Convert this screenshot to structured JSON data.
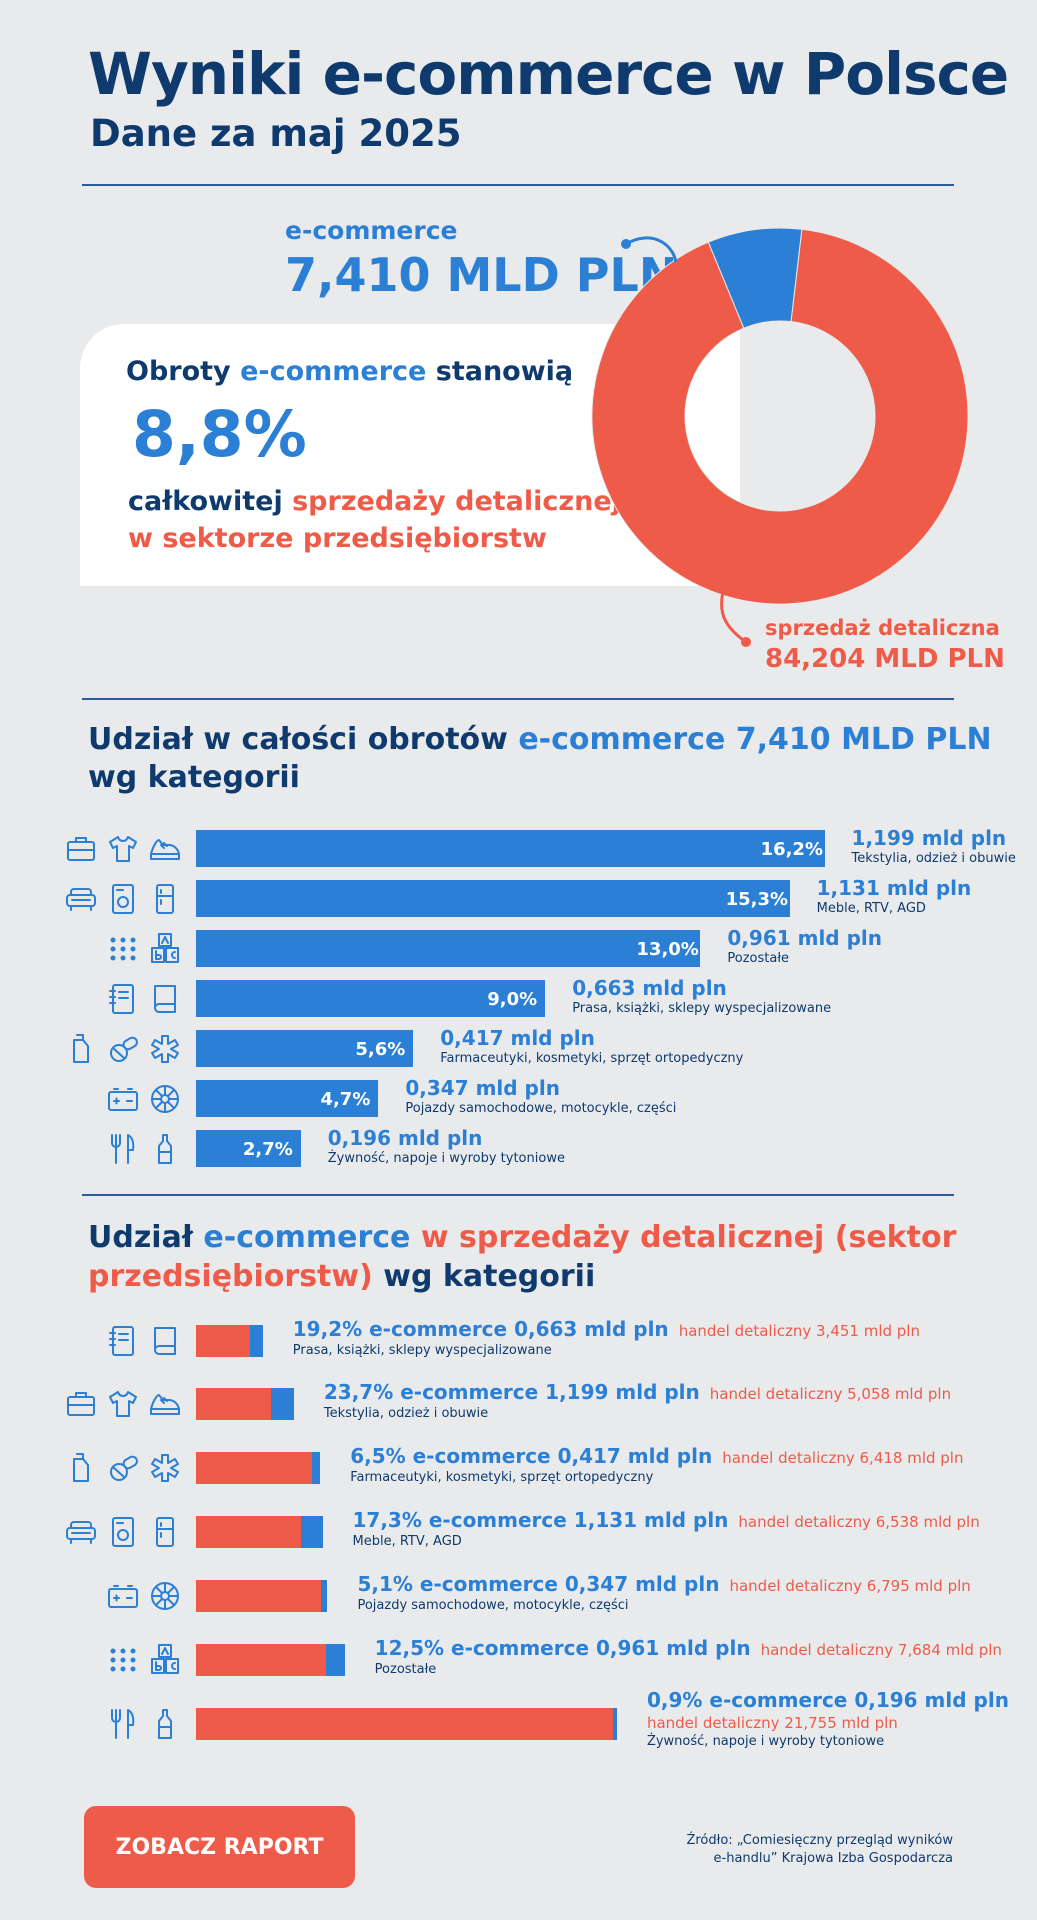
{
  "header": {
    "title": "Wyniki e-commerce w Polsce",
    "subtitle": "Dane za maj 2025"
  },
  "summary": {
    "ecommerce_label": "e-commerce",
    "ecommerce_value": "7,410 MLD PLN",
    "line1_a": "Obroty ",
    "line1_b": "e-commerce",
    "line1_c": " stanowią",
    "share": "8,8%",
    "line2_a": "całkowitej ",
    "line2_b": "sprzedaży detalicznej",
    "line3": "w sektorze przedsiębiorstw",
    "retail_label": "sprzedaż detaliczna",
    "retail_value": "84,204 MLD PLN"
  },
  "section1": {
    "t1": "Udział w całości obrotów ",
    "t2": "e-commerce 7,410 MLD PLN",
    "t3": "wg kategorii"
  },
  "section2": {
    "t1": "Udział ",
    "t2": "e-commerce",
    "t3": " w sprzedaży detalicznej (sektor",
    "t4": "przedsiębiorstw)",
    "t5": " wg kategorii"
  },
  "colors": {
    "blue": "#2b7fd4",
    "red": "#ef5b49",
    "navy": "#0e3a6e"
  },
  "chart_data": [
    {
      "type": "pie",
      "slices": [
        {
          "label": "e-commerce",
          "value": 7.41
        },
        {
          "label": "sprzedaż detaliczna",
          "value": 84.204
        }
      ]
    },
    {
      "type": "bar",
      "orientation": "horizontal",
      "items": [
        {
          "pct": 16.2,
          "pct_label": "16,2%",
          "value": "1,199 mld pln",
          "category": "Tekstylia, odzież i obuwie",
          "icons": [
            "briefcase-icon",
            "tshirt-icon",
            "sneaker-icon"
          ]
        },
        {
          "pct": 15.3,
          "pct_label": "15,3%",
          "value": "1,131 mld pln",
          "category": "Meble, RTV, AGD",
          "icons": [
            "sofa-icon",
            "washer-icon",
            "fridge-icon"
          ]
        },
        {
          "pct": 13.0,
          "pct_label": "13,0%",
          "value": "0,961 mld pln",
          "category": "Pozostałe",
          "icons": [
            "dots-grid-icon",
            "abc-blocks-icon"
          ]
        },
        {
          "pct": 9.0,
          "pct_label": "9,0%",
          "value": "0,663 mld pln",
          "category": "Prasa, książki, sklepy wyspecjalizowane",
          "icons": [
            "notebook-icon",
            "book-icon"
          ]
        },
        {
          "pct": 5.6,
          "pct_label": "5,6%",
          "value": "0,417 mld pln",
          "category": "Farmaceutyki, kosmetyki, sprzęt ortopedyczny",
          "icons": [
            "bottle-icon",
            "pills-icon",
            "medical-star-icon"
          ]
        },
        {
          "pct": 4.7,
          "pct_label": "4,7%",
          "value": "0,347 mld pln",
          "category": "Pojazdy samochodowe, motocykle, części",
          "icons": [
            "battery-icon",
            "wheel-icon"
          ]
        },
        {
          "pct": 2.7,
          "pct_label": "2,7%",
          "value": "0,196 mld pln",
          "category": "Żywność, napoje i wyroby tytoniowe",
          "icons": [
            "cutlery-icon",
            "drink-bottle-icon"
          ]
        }
      ]
    },
    {
      "type": "bar",
      "orientation": "horizontal",
      "stacked": true,
      "items": [
        {
          "pct": 19.2,
          "pct_label": "19,2%",
          "ecommerce": 0.663,
          "retail": 3.451,
          "ec_text": "e-commerce 0,663 mld pln",
          "retail_text": "handel detaliczny 3,451 mld pln",
          "category": "Prasa, książki, sklepy wyspecjalizowane",
          "icons": [
            "notebook-icon",
            "book-icon"
          ]
        },
        {
          "pct": 23.7,
          "pct_label": "23,7%",
          "ecommerce": 1.199,
          "retail": 5.058,
          "ec_text": "e-commerce 1,199 mld pln",
          "retail_text": "handel detaliczny 5,058 mld pln",
          "category": "Tekstylia, odzież i obuwie",
          "icons": [
            "briefcase-icon",
            "tshirt-icon",
            "sneaker-icon"
          ]
        },
        {
          "pct": 6.5,
          "pct_label": "6,5%",
          "ecommerce": 0.417,
          "retail": 6.418,
          "ec_text": "e-commerce 0,417 mld pln",
          "retail_text": "handel detaliczny 6,418 mld pln",
          "category": "Farmaceutyki, kosmetyki, sprzęt ortopedyczny",
          "icons": [
            "bottle-icon",
            "pills-icon",
            "medical-star-icon"
          ]
        },
        {
          "pct": 17.3,
          "pct_label": "17,3%",
          "ecommerce": 1.131,
          "retail": 6.538,
          "ec_text": "e-commerce 1,131 mld pln",
          "retail_text": "handel detaliczny 6,538 mld pln",
          "category": "Meble, RTV, AGD",
          "icons": [
            "sofa-icon",
            "washer-icon",
            "fridge-icon"
          ]
        },
        {
          "pct": 5.1,
          "pct_label": "5,1%",
          "ecommerce": 0.347,
          "retail": 6.795,
          "ec_text": "e-commerce 0,347 mld pln",
          "retail_text": "handel detaliczny 6,795 mld pln",
          "category": "Pojazdy samochodowe, motocykle, części",
          "icons": [
            "battery-icon",
            "wheel-icon"
          ]
        },
        {
          "pct": 12.5,
          "pct_label": "12,5%",
          "ecommerce": 0.961,
          "retail": 7.684,
          "ec_text": "e-commerce 0,961 mld pln",
          "retail_text": "handel detaliczny 7,684 mld pln",
          "category": "Pozostałe",
          "icons": [
            "dots-grid-icon",
            "abc-blocks-icon"
          ]
        },
        {
          "pct": 0.9,
          "pct_label": "0,9%",
          "ecommerce": 0.196,
          "retail": 21.755,
          "ec_text": "e-commerce 0,196 mld pln",
          "retail_text": "handel detaliczny 21,755 mld pln",
          "category": "Żywność, napoje i wyroby tytoniowe",
          "icons": [
            "cutlery-icon",
            "drink-bottle-icon"
          ]
        }
      ]
    }
  ],
  "footer": {
    "button": "ZOBACZ RAPORT",
    "source1": "Źródło: „Comiesięczny przegląd wyników",
    "source2": "e-handlu” Krajowa Izba Gospodarcza"
  }
}
